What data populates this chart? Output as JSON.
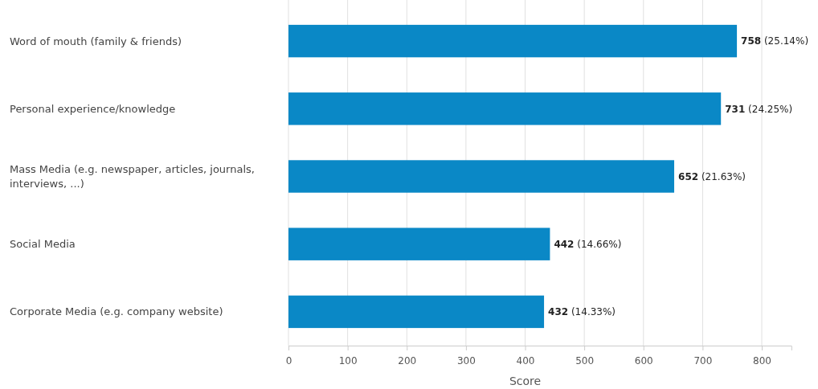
{
  "chart_data": {
    "type": "bar",
    "orientation": "horizontal",
    "xlabel": "Score",
    "categories": [
      "Word of mouth (family & friends)",
      "Personal experience/knowledge",
      "Mass Media (e.g. newspaper, articles, journals, interviews, ...)",
      "Social Media",
      "Corporate Media (e.g. company website)"
    ],
    "values": [
      758,
      731,
      652,
      442,
      432
    ],
    "value_labels": [
      "758 (25.14%)",
      "731 (24.25%)",
      "652 (21.63%)",
      "442 (14.66%)",
      "432 (14.33%)"
    ],
    "color": "#0a88c6",
    "xlim": [
      0,
      850
    ],
    "xticks": [
      0,
      100,
      200,
      300,
      400,
      500,
      600,
      700,
      800
    ],
    "grid": "x"
  }
}
